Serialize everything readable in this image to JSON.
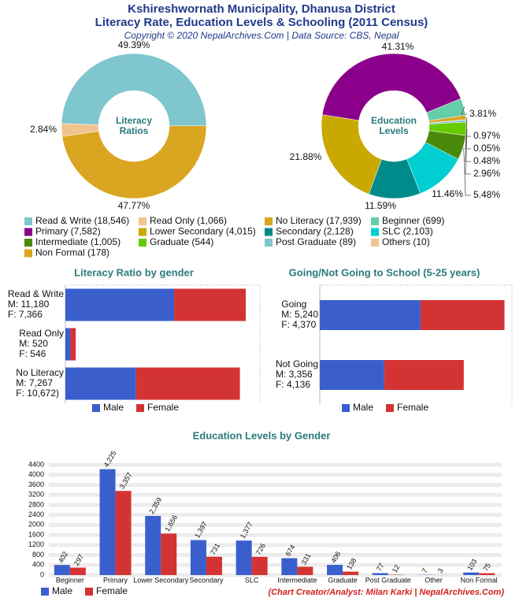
{
  "title": "Kshireshwornath Municipality, Dhanusa District",
  "subtitle": "Literacy Rate, Education Levels & Schooling (2011 Census)",
  "source": "Copyright © 2020 NepalArchives.Com | Data Source: CBS, Nepal",
  "credit": "(Chart Creator/Analyst: Milan Karki | NepalArchives.Com)",
  "legend": [
    {
      "label": "Read & Write (18,546)",
      "color": "#7fc6ce"
    },
    {
      "label": "Read Only (1,066)",
      "color": "#f2c28f"
    },
    {
      "label": "No Literacy (17,939)",
      "color": "#daa520"
    },
    {
      "label": "Beginner (699)",
      "color": "#66cdaa"
    },
    {
      "label": "Primary (7,582)",
      "color": "#8b008b"
    },
    {
      "label": "Lower Secondary (4,015)",
      "color": "#c9a800"
    },
    {
      "label": "Secondary (2,128)",
      "color": "#008b8b"
    },
    {
      "label": "SLC (2,103)",
      "color": "#00ced1"
    },
    {
      "label": "Intermediate (1,005)",
      "color": "#4a8a0a"
    },
    {
      "label": "Graduate (544)",
      "color": "#66cc00"
    },
    {
      "label": "Post Graduate (89)",
      "color": "#7fc6ce"
    },
    {
      "label": "Others (10)",
      "color": "#f2c28f"
    },
    {
      "label": "Non Formal (178)",
      "color": "#daa520"
    }
  ],
  "chart_data": [
    {
      "type": "pie",
      "center_label": [
        "Literacy",
        "Ratios"
      ],
      "values": [
        49.39,
        47.77,
        2.84
      ],
      "value_labels": [
        "49.39%",
        "47.77%",
        "2.84%"
      ],
      "colors": [
        "#7fc6ce",
        "#daa520",
        "#f2c28f"
      ]
    },
    {
      "type": "pie",
      "center_label": [
        "Education",
        "Levels"
      ],
      "values": [
        41.31,
        3.81,
        0.97,
        0.05,
        0.48,
        2.96,
        5.48,
        11.46,
        11.59,
        21.88
      ],
      "value_labels": [
        "41.31%",
        "3.81%",
        "0.97%",
        "0.05%",
        "0.48%",
        "2.96%",
        "5.48%",
        "11.46%",
        "11.59%",
        "21.88%"
      ],
      "colors": [
        "#8b008b",
        "#66cdaa",
        "#daa520",
        "#f2c28f",
        "#7fc6ce",
        "#66cc00",
        "#4a8a0a",
        "#00ced1",
        "#008b8b",
        "#c9a800"
      ]
    },
    {
      "type": "bar",
      "horizontal": true,
      "stacked": true,
      "title": "Literacy Ratio by gender",
      "categories": [
        "Read & Write",
        "Read Only",
        "No Literacy"
      ],
      "category_details": [
        [
          "M: 11,180",
          "F: 7,366"
        ],
        [
          "M: 520",
          "F: 546"
        ],
        [
          "M: 7,267",
          "F: 10,672)"
        ]
      ],
      "xlim": [
        0,
        20000
      ],
      "series": [
        {
          "name": "Male",
          "color": "#3a5fcd",
          "values": [
            11180,
            520,
            7267
          ]
        },
        {
          "name": "Female",
          "color": "#d43333",
          "values": [
            7366,
            546,
            10672
          ]
        }
      ]
    },
    {
      "type": "bar",
      "horizontal": true,
      "stacked": true,
      "title": "Going/Not Going to School (5-25 years)",
      "categories": [
        "Going",
        "Not Going"
      ],
      "category_details": [
        [
          "M: 5,240",
          "F: 4,370"
        ],
        [
          "M: 3,356",
          "F: 4,136"
        ]
      ],
      "xlim": [
        0,
        10000
      ],
      "series": [
        {
          "name": "Male",
          "color": "#3a5fcd",
          "values": [
            5240,
            3356
          ]
        },
        {
          "name": "Female",
          "color": "#d43333",
          "values": [
            4370,
            4136
          ]
        }
      ]
    },
    {
      "type": "bar",
      "horizontal": false,
      "stacked": false,
      "title": "Education Levels by Gender",
      "categories": [
        "Beginner",
        "Primary",
        "Lower Secondary",
        "Secondary",
        "SLC",
        "Intermediate",
        "Graduate",
        "Post Graduate",
        "Other",
        "Non Formal"
      ],
      "ylim": [
        0,
        4400
      ],
      "yticks": [
        0,
        400,
        800,
        1200,
        1600,
        2000,
        2400,
        2800,
        3200,
        3600,
        4000,
        4400
      ],
      "grid": true,
      "series": [
        {
          "name": "Male",
          "color": "#3a5fcd",
          "values": [
            402,
            4225,
            2359,
            1397,
            1377,
            674,
            406,
            77,
            7,
            103
          ],
          "value_labels": [
            "402",
            "4,225",
            "2,359",
            "1,397",
            "1,377",
            "674",
            "406",
            "77",
            "7",
            "103"
          ]
        },
        {
          "name": "Female",
          "color": "#d43333",
          "values": [
            297,
            3357,
            1656,
            731,
            726,
            331,
            138,
            12,
            3,
            75
          ],
          "value_labels": [
            "297",
            "3,357",
            "1,656",
            "731",
            "726",
            "331",
            "138",
            "12",
            "3",
            "75"
          ]
        }
      ]
    }
  ]
}
